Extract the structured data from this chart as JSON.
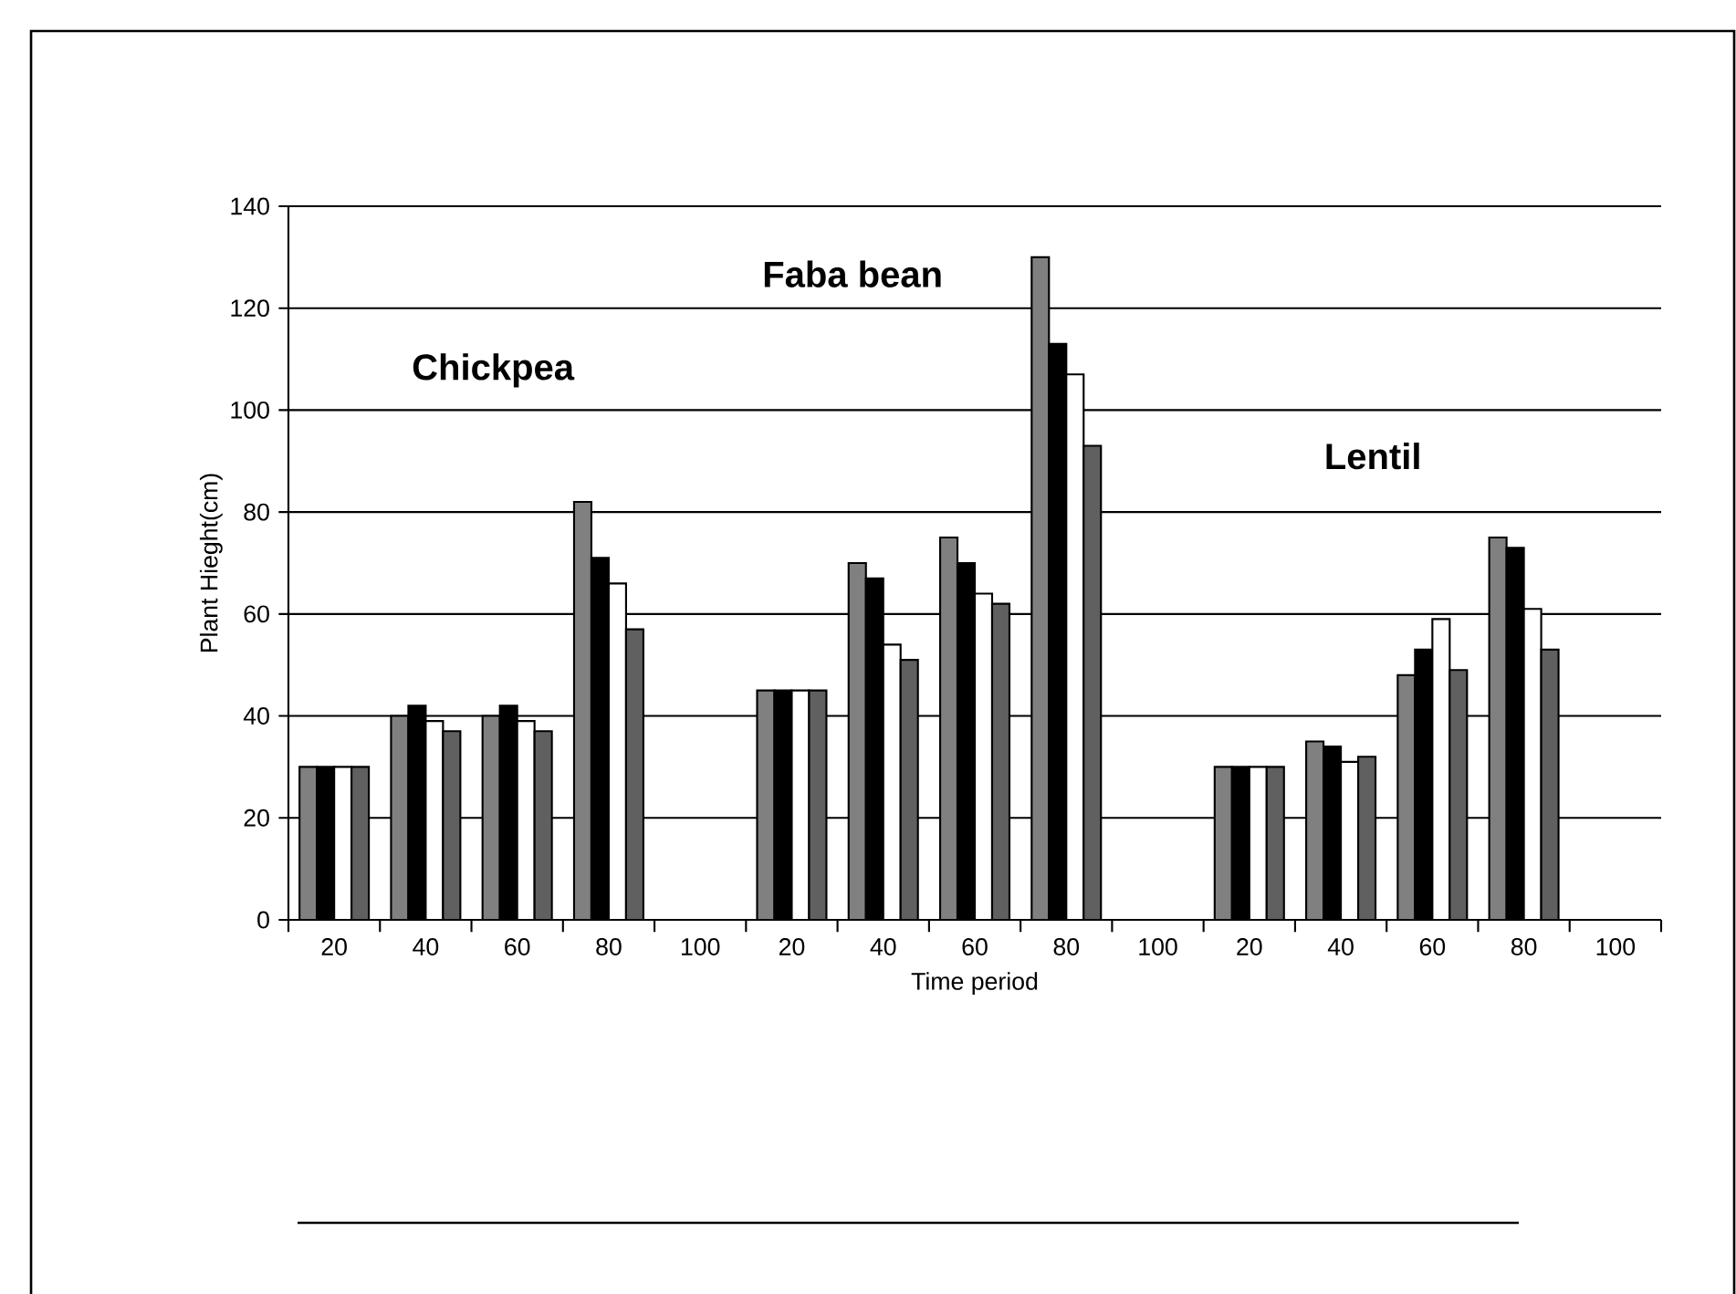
{
  "chart_data": {
    "type": "bar",
    "xlabel": "Time period",
    "ylabel": "Plant Hieght(cm)",
    "categories": [
      "20",
      "40",
      "60",
      "80",
      "100",
      "20",
      "40",
      "60",
      "80",
      "100",
      "20",
      "40",
      "60",
      "80",
      "100"
    ],
    "series": [
      {
        "color": "#808080",
        "values": [
          30,
          40,
          40,
          82,
          null,
          45,
          70,
          75,
          130,
          null,
          30,
          35,
          48,
          75,
          null
        ]
      },
      {
        "color": "#000000",
        "values": [
          30,
          42,
          42,
          71,
          null,
          45,
          67,
          70,
          113,
          null,
          30,
          34,
          53,
          73,
          null
        ]
      },
      {
        "color": "#ffffff",
        "values": [
          30,
          39,
          39,
          66,
          null,
          45,
          54,
          64,
          107,
          null,
          30,
          31,
          59,
          61,
          null
        ]
      },
      {
        "color": "#606060",
        "values": [
          30,
          37,
          37,
          57,
          null,
          45,
          51,
          62,
          93,
          null,
          30,
          32,
          49,
          53,
          null
        ]
      }
    ],
    "ylim": [
      0,
      140
    ],
    "yticks": [
      0,
      20,
      40,
      60,
      80,
      100,
      120,
      140
    ],
    "grid": "y",
    "annotations": [
      "Chickpea",
      "Faba bean",
      "Lentil"
    ]
  }
}
